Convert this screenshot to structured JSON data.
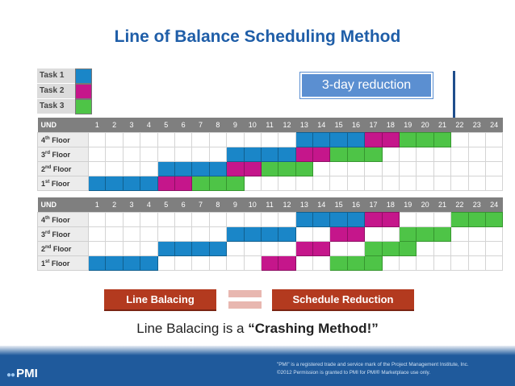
{
  "title": "Line of Balance Scheduling Method",
  "legend": [
    {
      "label": "Task 1",
      "color": "#1a86c8"
    },
    {
      "label": "Task 2",
      "color": "#c5168b"
    },
    {
      "label": "Task 3",
      "color": "#4ec447"
    }
  ],
  "callout": "3-day reduction",
  "units_header": "UND",
  "columns": [
    "1",
    "2",
    "3",
    "4",
    "5",
    "6",
    "7",
    "8",
    "9",
    "10",
    "11",
    "12",
    "13",
    "14",
    "15",
    "16",
    "17",
    "18",
    "19",
    "20",
    "21",
    "22",
    "23",
    "24"
  ],
  "floor_rows": [
    {
      "base": "4",
      "suffix": "th",
      "word": "Floor"
    },
    {
      "base": "3",
      "suffix": "rd",
      "word": "Floor"
    },
    {
      "base": "2",
      "suffix": "nd",
      "word": "Floor"
    },
    {
      "base": "1",
      "suffix": "st",
      "word": "Floor"
    }
  ],
  "schedule_top": [
    [
      0,
      0,
      0,
      0,
      0,
      0,
      0,
      0,
      0,
      0,
      0,
      0,
      1,
      1,
      1,
      1,
      2,
      2,
      3,
      3,
      3,
      0,
      0,
      0
    ],
    [
      0,
      0,
      0,
      0,
      0,
      0,
      0,
      0,
      1,
      1,
      1,
      1,
      2,
      2,
      3,
      3,
      3,
      0,
      0,
      0,
      0,
      0,
      0,
      0
    ],
    [
      0,
      0,
      0,
      0,
      1,
      1,
      1,
      1,
      2,
      2,
      3,
      3,
      3,
      0,
      0,
      0,
      0,
      0,
      0,
      0,
      0,
      0,
      0,
      0
    ],
    [
      1,
      1,
      1,
      1,
      2,
      2,
      3,
      3,
      3,
      0,
      0,
      0,
      0,
      0,
      0,
      0,
      0,
      0,
      0,
      0,
      0,
      0,
      0,
      0
    ]
  ],
  "schedule_bottom": [
    [
      0,
      0,
      0,
      0,
      0,
      0,
      0,
      0,
      0,
      0,
      0,
      0,
      1,
      1,
      1,
      1,
      2,
      2,
      0,
      0,
      0,
      3,
      3,
      3
    ],
    [
      0,
      0,
      0,
      0,
      0,
      0,
      0,
      0,
      1,
      1,
      1,
      1,
      0,
      0,
      2,
      2,
      0,
      0,
      3,
      3,
      3,
      0,
      0,
      0
    ],
    [
      0,
      0,
      0,
      0,
      1,
      1,
      1,
      1,
      0,
      0,
      0,
      0,
      2,
      2,
      0,
      0,
      3,
      3,
      3,
      0,
      0,
      0,
      0,
      0
    ],
    [
      1,
      1,
      1,
      1,
      0,
      0,
      0,
      0,
      0,
      0,
      2,
      2,
      0,
      0,
      3,
      3,
      3,
      0,
      0,
      0,
      0,
      0,
      0,
      0
    ]
  ],
  "buttons": {
    "left": "Line Balacing",
    "right": "Schedule Reduction"
  },
  "statement": {
    "prefix": "Line Balacing is a ",
    "emphasis": "“Crashing Method!”"
  },
  "footer": {
    "logo": "PMI",
    "note_line1": "\"PMI\" is a registered trade and service mark of the Project Management Institute, Inc.",
    "note_line2": "©2012 Permission is granted to PMI for PMI® Marketplace use only."
  }
}
